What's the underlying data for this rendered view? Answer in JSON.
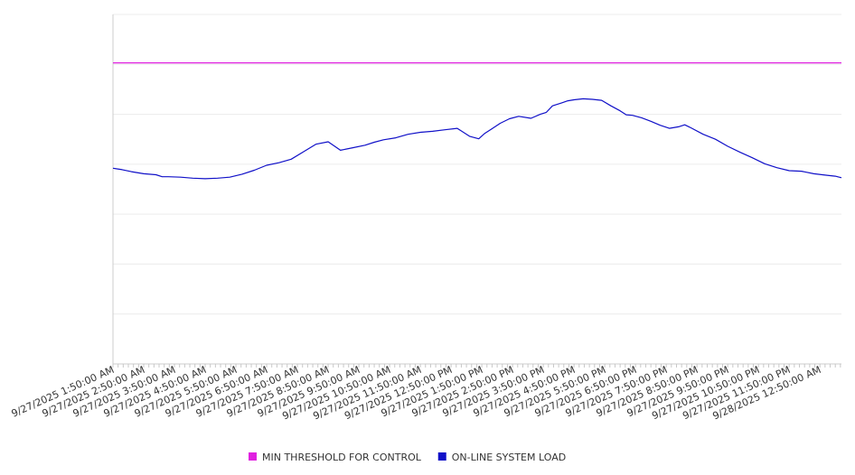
{
  "chart_data": {
    "type": "line",
    "title": "",
    "xlabel": "",
    "ylabel": "",
    "x_tick_labels": [
      "9/27/2025 1:50:00 AM",
      "9/27/2025 2:50:00 AM",
      "9/27/2025 3:50:00 AM",
      "9/27/2025 4:50:00 AM",
      "9/27/2025 5:50:00 AM",
      "9/27/2025 6:50:00 AM",
      "9/27/2025 7:50:00 AM",
      "9/27/2025 8:50:00 AM",
      "9/27/2025 9:50:00 AM",
      "9/27/2025 10:50:00 AM",
      "9/27/2025 11:50:00 AM",
      "9/27/2025 12:50:00 PM",
      "9/27/2025 1:50:00 PM",
      "9/27/2025 2:50:00 PM",
      "9/27/2025 3:50:00 PM",
      "9/27/2025 4:50:00 PM",
      "9/27/2025 5:50:00 PM",
      "9/27/2025 6:50:00 PM",
      "9/27/2025 7:50:00 PM",
      "9/27/2025 8:50:00 PM",
      "9/27/2025 9:50:00 PM",
      "9/27/2025 10:50:00 PM",
      "9/27/2025 11:50:00 PM",
      "9/28/2025 12:50:00 AM"
    ],
    "x_range_hours": [
      0,
      23.7
    ],
    "ylim": [
      0,
      70
    ],
    "grid": true,
    "legend_position": "bottom-center",
    "series": [
      {
        "name": "MIN THRESHOLD FOR CONTROL",
        "color": "#e020e0",
        "x_hours": [
          0,
          23.7
        ],
        "values": [
          60.3,
          60.3
        ]
      },
      {
        "name": "ON-LINE SYSTEM LOAD",
        "color": "#1010c8",
        "x_hours": [
          0,
          0.3,
          0.6,
          1.0,
          1.4,
          1.6,
          1.8,
          2.2,
          2.6,
          3.0,
          3.4,
          3.8,
          4.2,
          4.6,
          5.0,
          5.4,
          5.8,
          6.2,
          6.6,
          7.0,
          7.4,
          7.8,
          8.2,
          8.5,
          8.8,
          9.2,
          9.6,
          10.0,
          10.4,
          10.8,
          11.2,
          11.6,
          11.9,
          12.1,
          12.3,
          12.6,
          12.9,
          13.2,
          13.6,
          13.9,
          14.1,
          14.3,
          14.6,
          14.8,
          15.0,
          15.3,
          15.6,
          15.9,
          16.2,
          16.5,
          16.7,
          16.9,
          17.2,
          17.5,
          17.8,
          18.1,
          18.4,
          18.6,
          18.8,
          19.2,
          19.6,
          20.0,
          20.4,
          20.8,
          21.2,
          21.6,
          22.0,
          22.4,
          22.8,
          23.2,
          23.5,
          23.7
        ],
        "values": [
          39.2,
          38.9,
          38.5,
          38.1,
          37.9,
          37.5,
          37.5,
          37.4,
          37.2,
          37.1,
          37.2,
          37.4,
          38.0,
          38.8,
          39.8,
          40.3,
          41.0,
          42.5,
          44.0,
          44.5,
          42.8,
          43.3,
          43.8,
          44.4,
          44.9,
          45.3,
          46.0,
          46.4,
          46.6,
          46.9,
          47.2,
          45.6,
          45.1,
          46.2,
          47.0,
          48.2,
          49.1,
          49.6,
          49.2,
          50.0,
          50.4,
          51.7,
          52.3,
          52.7,
          52.9,
          53.1,
          53.0,
          52.8,
          51.7,
          50.7,
          49.9,
          49.8,
          49.3,
          48.6,
          47.8,
          47.2,
          47.5,
          47.9,
          47.3,
          46.0,
          45.0,
          43.6,
          42.4,
          41.3,
          40.1,
          39.3,
          38.7,
          38.6,
          38.1,
          37.8,
          37.6,
          37.3
        ]
      }
    ]
  }
}
